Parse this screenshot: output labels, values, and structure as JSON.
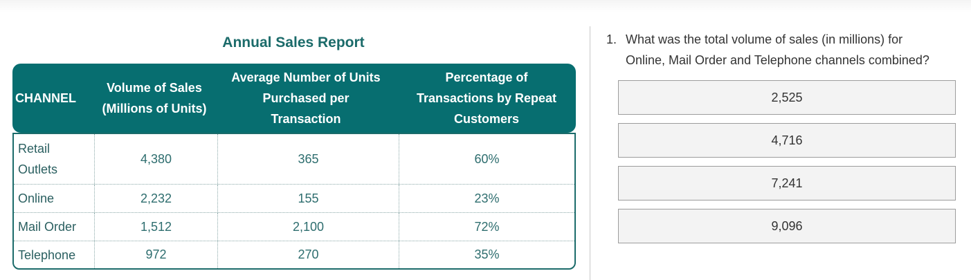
{
  "report": {
    "title": "Annual Sales Report",
    "columns": [
      "CHANNEL",
      "Volume of Sales (Millions of Units)",
      "Average Number of Units Purchased per Transaction",
      "Percentage of Transactions by Repeat Customers"
    ],
    "column_lines": [
      [
        "CHANNEL"
      ],
      [
        "Volume of Sales",
        "(Millions of Units)"
      ],
      [
        "Average Number of Units",
        "Purchased per",
        "Transaction"
      ],
      [
        "Percentage of",
        "Transactions by Repeat",
        "Customers"
      ]
    ],
    "rows": [
      {
        "channel_lines": [
          "Retail",
          "Outlets"
        ],
        "volume": "4,380",
        "avg_units": "365",
        "pct_repeat": "60%"
      },
      {
        "channel_lines": [
          "Online"
        ],
        "volume": "2,232",
        "avg_units": "155",
        "pct_repeat": "23%"
      },
      {
        "channel_lines": [
          "Mail Order"
        ],
        "volume": "1,512",
        "avg_units": "2,100",
        "pct_repeat": "72%"
      },
      {
        "channel_lines": [
          "Telephone"
        ],
        "volume": "972",
        "avg_units": "270",
        "pct_repeat": "35%"
      }
    ]
  },
  "question": {
    "number": "1.",
    "line1": "What was the total volume of sales (in millions) for",
    "line2": "Online, Mail Order and Telephone channels combined?",
    "options": [
      "2,525",
      "4,716",
      "7,241",
      "9,096"
    ]
  },
  "colors": {
    "header_bg": "#076e70",
    "title": "#1b6b6a",
    "option_bg": "#f3f3f3"
  }
}
